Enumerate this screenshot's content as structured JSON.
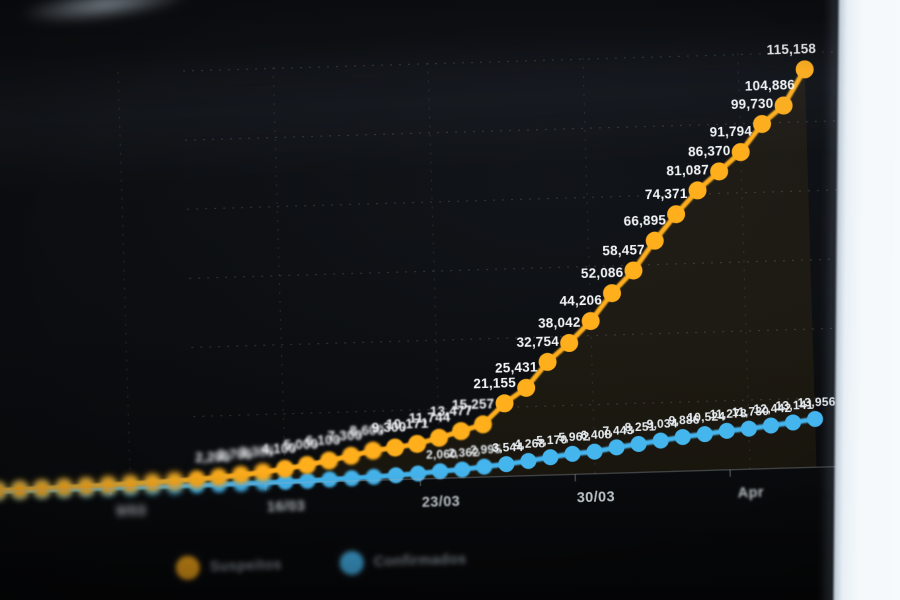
{
  "colors": {
    "suspeitos": "#FFAE1B",
    "confirmados": "#45B5EE",
    "label_text": "#f3f6f8",
    "blue_label_text": "#e7edf1",
    "axis_text": "#ccd4da",
    "legend_text": "#8d97a0",
    "grid": "#aeb8c2",
    "area_fill": "rgba(255,186,35,0.065)",
    "screen_bg": "#0b0d10",
    "desk_white": "#f5f9fb"
  },
  "chart_data": {
    "type": "line",
    "title": "",
    "x_axis": {
      "tick_labels": [
        "9/03",
        "16/03",
        "23/03",
        "30/03",
        "Apr"
      ],
      "tick_day_indices": [
        8,
        15,
        22,
        29,
        36
      ]
    },
    "y_axis": {
      "min": 0,
      "max": 120000,
      "labels_visible": false,
      "gridlines": [
        20000,
        40000,
        60000,
        80000,
        100000,
        120000
      ]
    },
    "grid": "dashed",
    "legend": {
      "position": "bottom-left",
      "items": [
        {
          "label": "Suspeitos",
          "color": "#FFAE1B"
        },
        {
          "label": "Confirmados",
          "color": "#45B5EE"
        }
      ]
    },
    "label_format": "thousands-comma",
    "series": [
      {
        "name": "Suspeitos",
        "color": "#FFAE1B",
        "label_min_value": 2200,
        "values": [
          120,
          180,
          250,
          340,
          450,
          580,
          730,
          900,
          1080,
          1280,
          1520,
          1800,
          2200,
          2700,
          3300,
          4100,
          5000,
          6100,
          7300,
          8600,
          9300,
          10171,
          11744,
          13477,
          15257,
          21155,
          25431,
          32754,
          38042,
          44206,
          52086,
          58457,
          66895,
          74371,
          81087,
          86370,
          91794,
          99730,
          104886,
          115158
        ]
      },
      {
        "name": "Confirmados",
        "color": "#45B5EE",
        "label_min_value": 2060,
        "values": [
          2,
          2,
          4,
          6,
          9,
          13,
          21,
          30,
          39,
          41,
          59,
          78,
          112,
          169,
          245,
          331,
          448,
          642,
          785,
          1020,
          1280,
          1600,
          2060,
          2362,
          2995,
          3544,
          4268,
          5170,
          5962,
          6408,
          7443,
          8251,
          9034,
          9886,
          10524,
          11278,
          11730,
          12442,
          13141,
          13956
        ]
      }
    ]
  }
}
